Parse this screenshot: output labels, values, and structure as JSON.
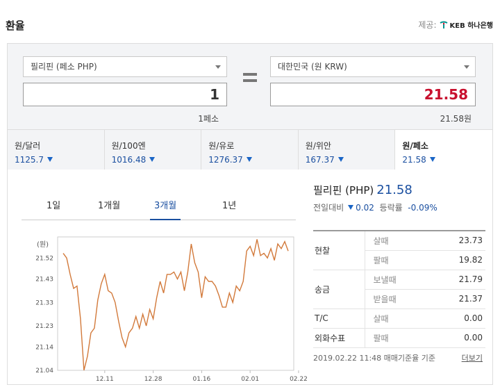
{
  "header": {
    "title": "환율",
    "provider_label": "제공:",
    "provider_name": "KEB 하나은행"
  },
  "converter": {
    "from_select": "필리핀 (페소 PHP)",
    "to_select": "대한민국 (원 KRW)",
    "from_amount": "1",
    "to_amount": "21.58",
    "from_sub": "1페소",
    "to_sub": "21.58원",
    "to_color": "#c8102e"
  },
  "rates": [
    {
      "name": "원/달러",
      "value": "1125.7"
    },
    {
      "name": "원/100엔",
      "value": "1016.48"
    },
    {
      "name": "원/유로",
      "value": "1276.37"
    },
    {
      "name": "원/위안",
      "value": "167.37"
    },
    {
      "name": "원/페소",
      "value": "21.58"
    }
  ],
  "tabs": [
    "1일",
    "1개월",
    "3개월",
    "1년"
  ],
  "active_tab": "3개월",
  "summary": {
    "name": "필리핀 (PHP)",
    "price": "21.58",
    "change_label": "전일대비",
    "change": "0.02",
    "rate_label": "등락률",
    "rate": "-0.09%"
  },
  "table": [
    {
      "group": "현찰",
      "label": "살때",
      "value": "23.73"
    },
    {
      "group": "",
      "label": "팔때",
      "value": "19.82"
    },
    {
      "group": "송금",
      "label": "보낼때",
      "value": "21.79"
    },
    {
      "group": "",
      "label": "받을때",
      "value": "21.37"
    },
    {
      "group": "T/C",
      "label": "살때",
      "value": "0.00"
    },
    {
      "group": "외화수표",
      "label": "팔때",
      "value": "0.00"
    }
  ],
  "footer": {
    "note": "2019.02.22 11:48 매매기준율 기준",
    "more": "더보기"
  },
  "chart_data": {
    "type": "line",
    "ylabel": "(원)",
    "yticks": [
      21.04,
      21.14,
      21.23,
      21.33,
      21.43,
      21.52
    ],
    "ylim": [
      21.04,
      21.61
    ],
    "xticks": [
      "12.11",
      "12.28",
      "01.16",
      "02.01",
      "02.22"
    ],
    "x_tick_positions": [
      12,
      26,
      40,
      54,
      68
    ],
    "line_color": "#d2793a",
    "values": [
      21.54,
      21.52,
      21.45,
      21.39,
      21.4,
      21.26,
      21.04,
      21.1,
      21.2,
      21.22,
      21.34,
      21.41,
      21.45,
      21.38,
      21.37,
      21.33,
      21.25,
      21.18,
      21.14,
      21.2,
      21.22,
      21.27,
      21.22,
      21.28,
      21.23,
      21.3,
      21.26,
      21.35,
      21.42,
      21.37,
      21.45,
      21.45,
      21.46,
      21.43,
      21.46,
      21.38,
      21.46,
      21.58,
      21.5,
      21.46,
      21.35,
      21.44,
      21.42,
      21.42,
      21.4,
      21.36,
      21.31,
      21.31,
      21.37,
      21.33,
      21.4,
      21.38,
      21.42,
      21.55,
      21.57,
      21.53,
      21.6,
      21.53,
      21.54,
      21.52,
      21.56,
      21.51,
      21.58,
      21.56,
      21.59,
      21.55
    ]
  }
}
